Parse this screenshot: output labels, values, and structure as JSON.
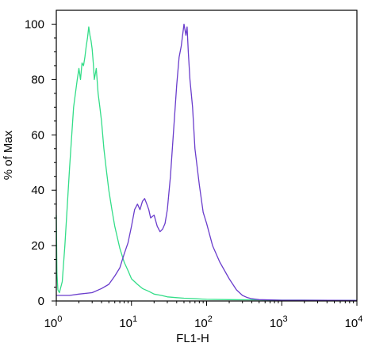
{
  "chart_data": {
    "type": "line",
    "title": "",
    "xlabel": "FL1-H",
    "ylabel": "% of Max",
    "xscale": "log",
    "xlim": [
      1,
      10000
    ],
    "ylim": [
      0,
      105
    ],
    "grid": false,
    "y_ticks": [
      0,
      20,
      40,
      60,
      80,
      100
    ],
    "y_tick_labels": [
      "0",
      "20",
      "40",
      "60",
      "80",
      "100"
    ],
    "x_ticks": [
      1,
      10,
      100,
      1000,
      10000
    ],
    "x_tick_labels": [
      {
        "base": "10",
        "exp": "0"
      },
      {
        "base": "10",
        "exp": "1"
      },
      {
        "base": "10",
        "exp": "2"
      },
      {
        "base": "10",
        "exp": "3"
      },
      {
        "base": "10",
        "exp": "4"
      }
    ],
    "series": [
      {
        "color": "#33dd88",
        "x": [
          1.0,
          1.02,
          1.05,
          1.1,
          1.2,
          1.3,
          1.5,
          1.7,
          1.9,
          2.0,
          2.1,
          2.2,
          2.3,
          2.4,
          2.5,
          2.6,
          2.7,
          2.8,
          2.9,
          3.0,
          3.1,
          3.2,
          3.4,
          3.6,
          3.8,
          4.0,
          4.3,
          4.6,
          5.0,
          5.5,
          6.0,
          7.0,
          8.0,
          9.0,
          10.0,
          12.0,
          14.0,
          17.0,
          20.0,
          25.0,
          30.0,
          40.0,
          50.0,
          70.0,
          100.0,
          200.0,
          500.0,
          1000.0,
          10000.0
        ],
        "y": [
          31,
          10,
          4,
          3,
          7,
          20,
          48,
          70,
          80,
          84,
          80,
          86,
          85,
          88,
          92,
          95,
          99,
          96,
          94,
          91,
          86,
          80,
          84,
          75,
          70,
          65,
          55,
          48,
          40,
          33,
          27,
          19,
          14,
          11,
          8,
          6,
          4.5,
          3.5,
          2.5,
          2,
          1.5,
          1.2,
          1,
          0.8,
          0.6,
          0.5,
          0.4,
          0.3,
          0.2
        ]
      },
      {
        "color": "#6a3dcc",
        "x": [
          1.0,
          1.5,
          2.0,
          3.0,
          4.0,
          5.0,
          6.0,
          7.0,
          8.0,
          9.0,
          10.0,
          11.0,
          12.0,
          13.0,
          14.0,
          15.0,
          16.0,
          17.0,
          18.0,
          20.0,
          22.0,
          24.0,
          26.0,
          28.0,
          30.0,
          33.0,
          36.0,
          40.0,
          43.0,
          46.0,
          50.0,
          53.0,
          55.0,
          57.0,
          60.0,
          65.0,
          70.0,
          80.0,
          90.0,
          100.0,
          120.0,
          150.0,
          200.0,
          250.0,
          300.0,
          350.0,
          400.0,
          500.0,
          1000.0,
          10000.0
        ],
        "y": [
          2,
          2,
          2.5,
          3,
          4.5,
          6,
          9,
          12,
          17,
          21,
          27,
          33,
          35,
          33,
          36,
          37,
          35,
          33,
          30,
          31,
          27,
          25,
          26,
          28,
          33,
          45,
          60,
          78,
          88,
          92,
          100,
          96,
          99,
          90,
          80,
          70,
          55,
          42,
          32,
          28,
          20,
          14,
          8,
          4,
          2,
          1.2,
          0.8,
          0.5,
          0.3,
          0.2
        ]
      }
    ]
  }
}
